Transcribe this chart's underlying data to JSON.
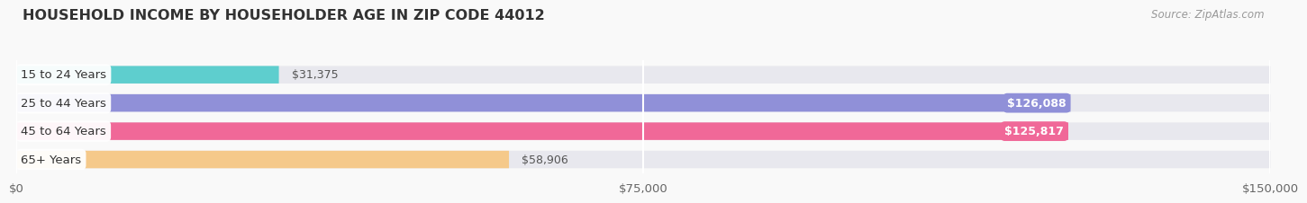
{
  "title": "HOUSEHOLD INCOME BY HOUSEHOLDER AGE IN ZIP CODE 44012",
  "source": "Source: ZipAtlas.com",
  "categories": [
    "15 to 24 Years",
    "25 to 44 Years",
    "45 to 64 Years",
    "65+ Years"
  ],
  "values": [
    31375,
    126088,
    125817,
    58906
  ],
  "bar_colors": [
    "#5ecece",
    "#9090d8",
    "#f06898",
    "#f5c98a"
  ],
  "bar_bg_color": "#e8e8ee",
  "value_labels": [
    "$31,375",
    "$126,088",
    "$125,817",
    "$58,906"
  ],
  "xmax": 150000,
  "xticks": [
    0,
    75000,
    150000
  ],
  "xtick_labels": [
    "$0",
    "$75,000",
    "$150,000"
  ],
  "background_color": "#f9f9f9",
  "title_fontsize": 11.5,
  "label_fontsize": 9.5,
  "value_fontsize": 9,
  "source_fontsize": 8.5,
  "val_inside_threshold": 60000
}
